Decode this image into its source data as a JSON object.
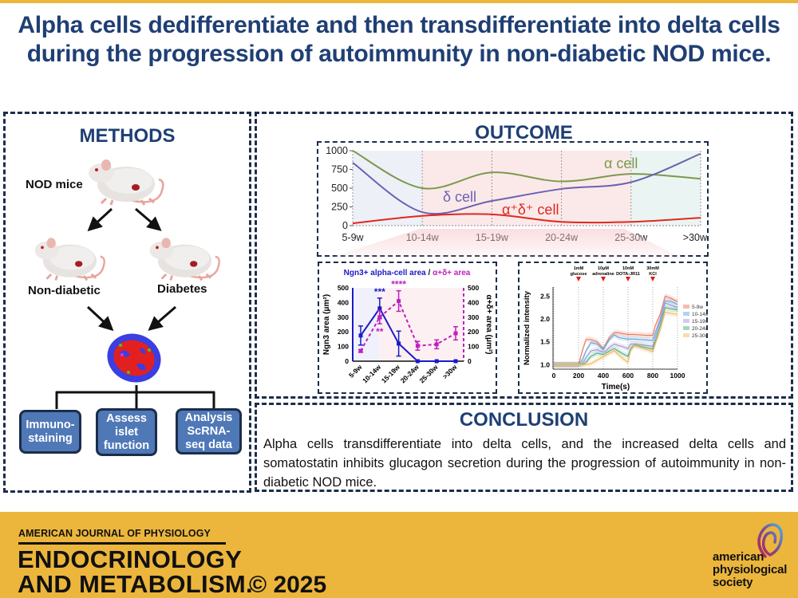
{
  "title": "Alpha cells dedifferentiate and then transdifferentiate into delta cells during the progression of autoimmunity in non-diabetic NOD mice.",
  "colors": {
    "title_blue": "#1f3f74",
    "border": "#1c2d4a",
    "method_box": "#4f78b7",
    "footer_gold": "#ecb63c",
    "alpha_green": "#7a9a4a",
    "delta_purple": "#6a62b0",
    "double_red": "#e0281e",
    "ngn3_blue": "#1a1ac8",
    "double_magenta": "#c020c0"
  },
  "methods": {
    "heading": "METHODS",
    "nod_label": "NOD mice",
    "nondiabetic_label": "Non-diabetic",
    "diabetes_label": "Diabetes",
    "icons": [
      "mouse-icon",
      "arrow-icon",
      "islet-icon"
    ],
    "boxes": [
      {
        "label": "Immuno-\nstaining"
      },
      {
        "label": "Assess\nislet\nfunction"
      },
      {
        "label": "Analysis\nScRNA-\nseq data"
      }
    ]
  },
  "outcome": {
    "heading": "OUTCOME"
  },
  "conclusion": {
    "heading": "CONCLUSION",
    "text": "Alpha cells transdifferentiate into delta cells, and the increased delta cells and somatostatin inhibits glucagon secretion  during the progression of autoimmunity in non-diabetic NOD mice."
  },
  "footer": {
    "journal_small": "AMERICAN JOURNAL OF PHYSIOLOGY",
    "journal_line1": "ENDOCRINOLOGY",
    "journal_line2": "AND METABOLISM.",
    "copyright": "© 2025",
    "society_line1": "american",
    "society_line2": "physiological",
    "society_line3": "society"
  },
  "chart_data": [
    {
      "type": "line",
      "title": "",
      "categories": [
        "5-9w",
        "10-14w",
        "15-19w",
        "20-24w",
        "25-30w",
        ">30w"
      ],
      "ylim": [
        0,
        1000
      ],
      "yticks": [
        0,
        250,
        500,
        750,
        1000
      ],
      "series": [
        {
          "name": "α cell",
          "label": "α cell",
          "color": "#7a9a4a",
          "values": [
            1000,
            500,
            710,
            590,
            690,
            625
          ]
        },
        {
          "name": "δ cell",
          "label": "δ cell",
          "color": "#6a62b0",
          "values": [
            840,
            180,
            330,
            490,
            580,
            960
          ]
        },
        {
          "name": "α+δ+ cell",
          "label": "α⁺δ⁺ cell",
          "color": "#e0281e",
          "values": [
            30,
            130,
            150,
            50,
            50,
            105
          ]
        }
      ],
      "shaded_phases": [
        {
          "from": "5-9w",
          "to": "10-14w",
          "color": "#eef0f8"
        },
        {
          "from": "10-14w",
          "to": "25-30w",
          "color": "#fbe9ea"
        },
        {
          "from": "25-30w",
          "to": ">30w",
          "color": "#eaf5f3"
        }
      ],
      "grid": "vertical dotted at categories",
      "legend": "inline labels"
    },
    {
      "type": "line",
      "title": "Ngn3+ alpha-cell area / α+δ+ area",
      "title_part1": "Ngn3+ alpha-cell area",
      "title_sep": " / ",
      "title_part2": "α+δ+ area",
      "categories": [
        "5-9w",
        "10-14w",
        "15-19w",
        "20-24w",
        "25-30w",
        ">30w"
      ],
      "ylabel": "Ngn3 area (μm²)",
      "y2label": "α+δ+ area (μm²)",
      "ylim": [
        0,
        500
      ],
      "y2lim": [
        0,
        500
      ],
      "yticks": [
        0,
        100,
        200,
        300,
        400,
        500
      ],
      "series": [
        {
          "name": "Ngn3 area",
          "axis": "left",
          "color": "#1a1ac8",
          "style": "solid",
          "values": [
            175,
            360,
            120,
            0,
            0,
            0
          ],
          "errors": [
            65,
            70,
            85,
            0,
            0,
            0
          ]
        },
        {
          "name": "α+δ+ area",
          "axis": "right",
          "color": "#c020c0",
          "style": "dashed",
          "values": [
            70,
            300,
            410,
            105,
            115,
            190
          ],
          "errors": [
            10,
            45,
            70,
            30,
            30,
            45
          ]
        }
      ],
      "annotations": [
        {
          "text": "***",
          "at": "10-14w",
          "color": "#1a1ac8",
          "position": "above"
        },
        {
          "text": "**",
          "at": "10-14w",
          "color": "#c020c0",
          "position": "below"
        },
        {
          "text": "****",
          "at": "15-19w",
          "color": "#c020c0",
          "position": "above"
        }
      ]
    },
    {
      "type": "line",
      "title": "",
      "xlabel": "Time(s)",
      "ylabel": "Normalized intensity",
      "xlim": [
        0,
        1000
      ],
      "xticks": [
        0,
        200,
        400,
        600,
        800,
        1000
      ],
      "ylim": [
        0.9,
        2.7
      ],
      "yticks": [
        "1.0",
        "1.5",
        "2.0",
        "2.5"
      ],
      "stimuli": [
        {
          "line1": "1mM",
          "line2": "glucose",
          "t": 200
        },
        {
          "line1": "10μM",
          "line2": "adrenaline",
          "t": 400
        },
        {
          "line1": "10nM",
          "line2": "DOTA-JR11",
          "t": 600
        },
        {
          "line1": "30mM",
          "line2": "KCl",
          "t": 800
        }
      ],
      "legend": "right",
      "x": [
        0,
        200,
        230,
        260,
        300,
        350,
        400,
        420,
        450,
        490,
        520,
        550,
        600,
        620,
        650,
        700,
        750,
        800,
        820,
        860,
        900,
        950,
        1000
      ],
      "series": [
        {
          "name": "5-9w",
          "color": "#f07a62",
          "values": [
            1.0,
            1.0,
            1.3,
            1.55,
            1.55,
            1.5,
            1.35,
            1.45,
            1.6,
            1.7,
            1.7,
            1.68,
            1.66,
            1.66,
            1.66,
            1.65,
            1.64,
            1.64,
            1.85,
            2.1,
            2.5,
            2.45,
            2.38
          ]
        },
        {
          "name": "10-14w",
          "color": "#6aa8d8",
          "values": [
            1.0,
            1.0,
            1.1,
            1.3,
            1.48,
            1.45,
            1.33,
            1.42,
            1.55,
            1.65,
            1.6,
            1.58,
            1.56,
            1.56,
            1.56,
            1.55,
            1.54,
            1.53,
            1.7,
            2.0,
            2.4,
            2.38,
            2.32
          ]
        },
        {
          "name": "15-19w",
          "color": "#a79ad6",
          "values": [
            1.0,
            1.0,
            1.02,
            1.15,
            1.3,
            1.33,
            1.27,
            1.3,
            1.38,
            1.45,
            1.42,
            1.4,
            1.35,
            1.45,
            1.45,
            1.44,
            1.42,
            1.4,
            1.6,
            1.95,
            2.35,
            2.3,
            2.25
          ]
        },
        {
          "name": "20-24w",
          "color": "#4fae88",
          "values": [
            1.0,
            1.0,
            1.0,
            1.05,
            1.18,
            1.25,
            1.22,
            1.25,
            1.3,
            1.35,
            1.3,
            1.25,
            1.18,
            1.35,
            1.43,
            1.4,
            1.37,
            1.34,
            1.5,
            1.85,
            2.25,
            2.22,
            2.2
          ]
        },
        {
          "name": "25-30w",
          "color": "#f5b85c",
          "values": [
            1.0,
            1.0,
            1.0,
            1.0,
            1.02,
            1.1,
            1.17,
            1.2,
            1.25,
            1.3,
            1.22,
            1.15,
            1.05,
            1.3,
            1.42,
            1.38,
            1.33,
            1.28,
            1.45,
            1.75,
            2.15,
            2.12,
            2.1
          ]
        }
      ]
    }
  ]
}
